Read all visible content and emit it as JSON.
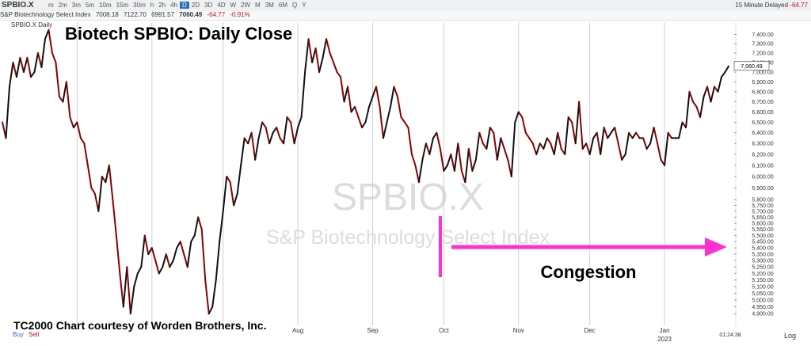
{
  "toolbar": {
    "symbol": "SPBIO.X",
    "timeframes": [
      "m",
      "2m",
      "3m",
      "5m",
      "10m",
      "15m",
      "30m",
      "h",
      "2h",
      "4h",
      "D",
      "2D",
      "3D",
      "4D",
      "W",
      "2W",
      "M",
      "3M",
      "6M",
      "Q",
      "Y"
    ],
    "active_timeframe": "D",
    "delay_note": "15 Minute Delayed",
    "right_change": "-64.77"
  },
  "quote": {
    "name": "S&P Biotechnology Select Index",
    "open": "7008.18",
    "high": "7122.70",
    "low": "6991.57",
    "last": "7060.49",
    "change": "-64.77",
    "change_pct": "-0.91%"
  },
  "legend": "SPBIO.X Daily",
  "buy_label": "Buy",
  "sell_label": "Sell",
  "log_label": "Log",
  "time_label": "01:24:38",
  "colors": {
    "up": "#111111",
    "down": "#8b0000",
    "arrow": "#ff2fd1",
    "grid": "#dcdcdc"
  },
  "chart_data": {
    "type": "line",
    "title": "Biotech SPBIO:  Daily Close",
    "credit": "TC2000 Chart courtesy of Worden Brothers, Inc.",
    "watermark_symbol": "SPBIO.X",
    "watermark_name": "S&P Biotechnology Select Index",
    "annotation": "Congestion",
    "y_scale": "log",
    "ylim": [
      4850,
      7500
    ],
    "y_ticks": [
      "7,400.00",
      "7,300.00",
      "7,200.00",
      "7,100.00",
      "7,000.00",
      "6,900.00",
      "6,800.00",
      "6,700.00",
      "6,600.00",
      "6,500.00",
      "6,400.00",
      "6,300.00",
      "6,200.00",
      "6,100.00",
      "6,000.00",
      "5,900.00",
      "5,800.00",
      "5,750.00",
      "5,700.00",
      "5,650.00",
      "5,600.00",
      "5,550.00",
      "5,500.00",
      "5,450.00",
      "5,400.00",
      "5,350.00",
      "5,300.00",
      "5,250.00",
      "5,200.00",
      "5,150.00",
      "5,100.00",
      "5,050.00",
      "5,000.00",
      "4,950.00",
      "4,900.00"
    ],
    "last_value_label": "7,060.49",
    "x_labels": [
      {
        "label": "Aug",
        "day": 83
      },
      {
        "label": "Sep",
        "day": 104
      },
      {
        "label": "Oct",
        "day": 124
      },
      {
        "label": "Nov",
        "day": 145
      },
      {
        "label": "Dec",
        "day": 165
      },
      {
        "label": "Jan",
        "day": 186
      },
      {
        "label": "2023",
        "day": 186
      }
    ],
    "grid": true,
    "series": [
      {
        "values": [
          6500,
          6350,
          6850,
          7100,
          6950,
          7150,
          7000,
          7150,
          6950,
          7000,
          7200,
          7050,
          7350,
          7450,
          7200,
          7100,
          6750,
          6700,
          6900,
          6550,
          6450,
          6500,
          6350,
          6300,
          6100,
          5900,
          5850,
          5700,
          6000,
          5950,
          6100,
          5800,
          5500,
          5200,
          4950,
          5250,
          4900,
          5100,
          5200,
          5250,
          5500,
          5350,
          5400,
          5300,
          5200,
          5250,
          5350,
          5250,
          5300,
          5400,
          5450,
          5350,
          5250,
          5450,
          5500,
          5650,
          5550,
          5150,
          4900,
          4950,
          5150,
          5450,
          5700,
          6000,
          5950,
          5750,
          5850,
          6100,
          6350,
          6300,
          6400,
          6150,
          6350,
          6500,
          6450,
          6300,
          6400,
          6450,
          6350,
          6300,
          6550,
          6500,
          6300,
          6450,
          6550,
          7000,
          7350,
          7100,
          7250,
          7000,
          7150,
          7350,
          7200,
          7100,
          7000,
          6950,
          6700,
          6850,
          6600,
          6650,
          6550,
          6450,
          6500,
          6650,
          6750,
          6850,
          6650,
          6350,
          6500,
          6650,
          6850,
          6750,
          6550,
          6500,
          6450,
          6200,
          6100,
          5950,
          6150,
          6300,
          6200,
          6350,
          6400,
          6250,
          6050,
          6100,
          6200,
          6050,
          6300,
          6050,
          5950,
          6250,
          6050,
          6150,
          6400,
          6300,
          6250,
          6450,
          6400,
          6150,
          6350,
          6250,
          6150,
          6000,
          6500,
          6600,
          6550,
          6400,
          6350,
          6300,
          6200,
          6300,
          6250,
          6350,
          6300,
          6200,
          6400,
          6250,
          6200,
          6550,
          6500,
          6300,
          6700,
          6250,
          6300,
          6200,
          6350,
          6400,
          6200,
          6450,
          6350,
          6400,
          6450,
          6300,
          6150,
          6200,
          6400,
          6350,
          6400,
          6350,
          6350,
          6250,
          6300,
          6450,
          6300,
          6150,
          6100,
          6400,
          6350,
          6350,
          6350,
          6500,
          6450,
          6800,
          6700,
          6650,
          6550,
          6750,
          6850,
          6700,
          6850,
          6800,
          6950,
          7000,
          7060.49
        ]
      }
    ]
  }
}
